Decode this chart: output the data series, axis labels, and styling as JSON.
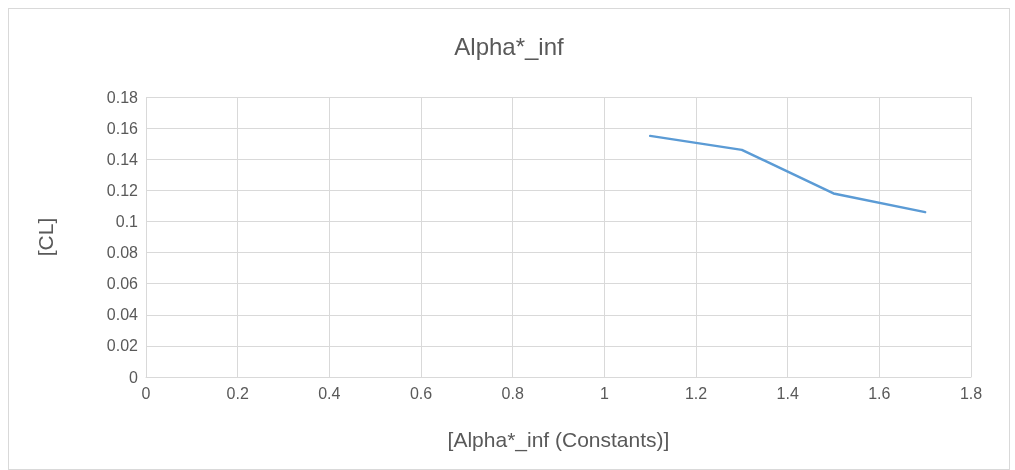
{
  "chart_data": {
    "type": "line",
    "title": "Alpha*_inf",
    "xlabel": "[Alpha*_inf (Constants)]",
    "ylabel": "[CL]",
    "series": [
      {
        "color": "#5b9bd5",
        "x": [
          1.1,
          1.3,
          1.5,
          1.7
        ],
        "values": [
          0.155,
          0.146,
          0.118,
          0.106
        ]
      }
    ],
    "xlim": [
      0,
      1.8
    ],
    "xticks": [
      0,
      0.2,
      0.4,
      0.6,
      0.8,
      1,
      1.2,
      1.4,
      1.6,
      1.8
    ],
    "ylim": [
      0,
      0.18
    ],
    "yticks": [
      0,
      0.02,
      0.04,
      0.06,
      0.08,
      0.1,
      0.12,
      0.14,
      0.16,
      0.18
    ],
    "grid": true,
    "marker": "none",
    "line_style": "solid"
  }
}
